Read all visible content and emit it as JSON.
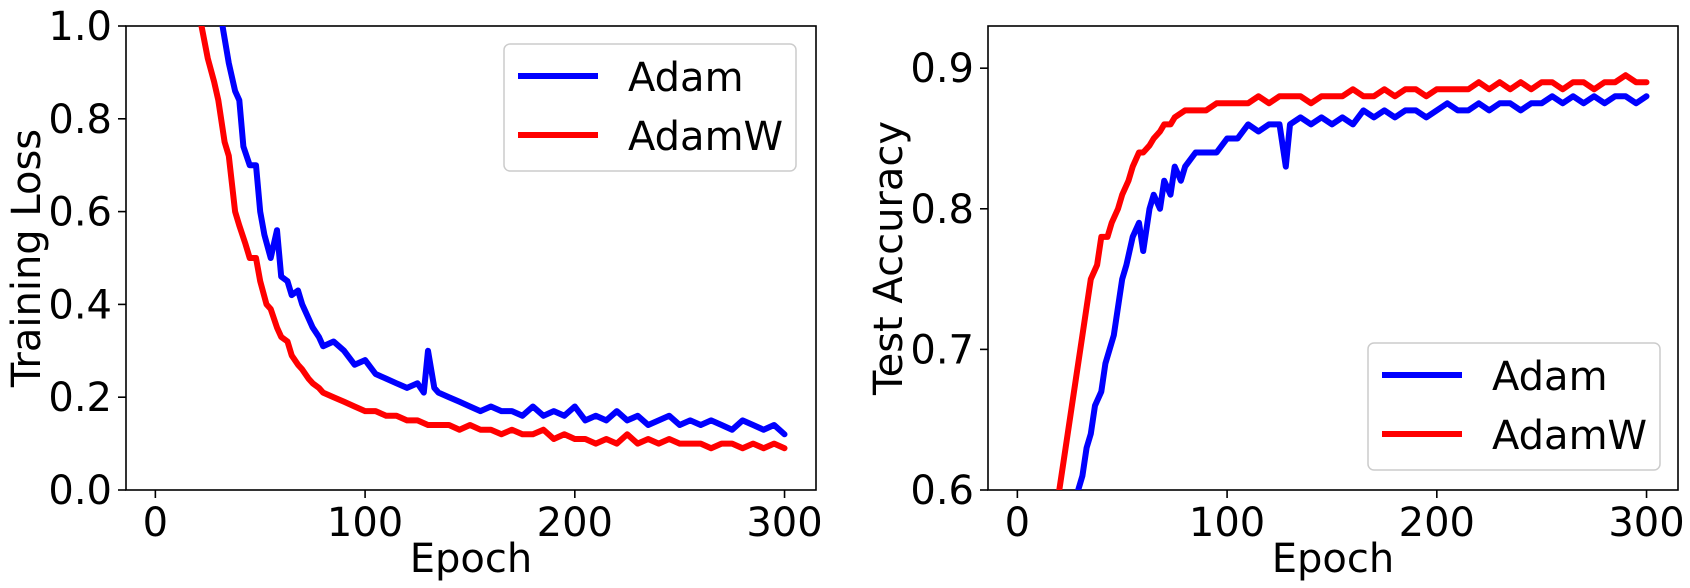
{
  "chart_data": [
    {
      "type": "line",
      "title": "",
      "xlabel": "Epoch",
      "ylabel": "Training Loss",
      "xlim": [
        -14,
        315
      ],
      "ylim": [
        0.0,
        1.0
      ],
      "xticks": [
        0,
        100,
        200,
        300
      ],
      "xtick_labels": [
        "0",
        "100",
        "200",
        "300"
      ],
      "yticks": [
        0.0,
        0.2,
        0.4,
        0.6,
        0.8,
        1.0
      ],
      "ytick_labels": [
        "0.0",
        "0.2",
        "0.4",
        "0.6",
        "0.8",
        "1.0"
      ],
      "legend_position": "top-right",
      "grid": false,
      "series": [
        {
          "name": "Adam",
          "color": "#0000ff",
          "x": [
            32,
            35,
            38,
            40,
            42,
            45,
            48,
            50,
            52,
            55,
            58,
            60,
            63,
            65,
            68,
            70,
            73,
            75,
            78,
            80,
            85,
            90,
            95,
            100,
            105,
            110,
            115,
            120,
            125,
            128,
            130,
            133,
            135,
            140,
            145,
            150,
            155,
            160,
            165,
            170,
            175,
            180,
            185,
            190,
            195,
            200,
            205,
            210,
            215,
            220,
            225,
            230,
            235,
            240,
            245,
            250,
            255,
            260,
            265,
            270,
            275,
            280,
            285,
            290,
            295,
            300
          ],
          "y": [
            1.0,
            0.92,
            0.86,
            0.84,
            0.74,
            0.7,
            0.7,
            0.6,
            0.55,
            0.5,
            0.56,
            0.46,
            0.45,
            0.42,
            0.43,
            0.4,
            0.37,
            0.35,
            0.33,
            0.31,
            0.32,
            0.3,
            0.27,
            0.28,
            0.25,
            0.24,
            0.23,
            0.22,
            0.23,
            0.21,
            0.3,
            0.22,
            0.21,
            0.2,
            0.19,
            0.18,
            0.17,
            0.18,
            0.17,
            0.17,
            0.16,
            0.18,
            0.16,
            0.17,
            0.16,
            0.18,
            0.15,
            0.16,
            0.15,
            0.17,
            0.15,
            0.16,
            0.14,
            0.15,
            0.16,
            0.14,
            0.15,
            0.14,
            0.15,
            0.14,
            0.13,
            0.15,
            0.14,
            0.13,
            0.14,
            0.12
          ]
        },
        {
          "name": "AdamW",
          "color": "#ff0000",
          "x": [
            22,
            25,
            28,
            30,
            33,
            35,
            38,
            40,
            43,
            45,
            48,
            50,
            53,
            55,
            58,
            60,
            63,
            65,
            68,
            70,
            73,
            75,
            78,
            80,
            85,
            90,
            95,
            100,
            105,
            110,
            115,
            120,
            125,
            130,
            135,
            140,
            145,
            150,
            155,
            160,
            165,
            170,
            175,
            180,
            185,
            190,
            195,
            200,
            205,
            210,
            215,
            220,
            225,
            230,
            235,
            240,
            245,
            250,
            255,
            260,
            265,
            270,
            275,
            280,
            285,
            290,
            295,
            300
          ],
          "y": [
            1.0,
            0.93,
            0.88,
            0.84,
            0.75,
            0.72,
            0.6,
            0.57,
            0.53,
            0.5,
            0.5,
            0.45,
            0.4,
            0.39,
            0.35,
            0.33,
            0.32,
            0.29,
            0.27,
            0.26,
            0.24,
            0.23,
            0.22,
            0.21,
            0.2,
            0.19,
            0.18,
            0.17,
            0.17,
            0.16,
            0.16,
            0.15,
            0.15,
            0.14,
            0.14,
            0.14,
            0.13,
            0.14,
            0.13,
            0.13,
            0.12,
            0.13,
            0.12,
            0.12,
            0.13,
            0.11,
            0.12,
            0.11,
            0.11,
            0.1,
            0.11,
            0.1,
            0.12,
            0.1,
            0.11,
            0.1,
            0.11,
            0.1,
            0.1,
            0.1,
            0.09,
            0.1,
            0.1,
            0.09,
            0.1,
            0.09,
            0.1,
            0.09
          ]
        }
      ]
    },
    {
      "type": "line",
      "title": "",
      "xlabel": "Epoch",
      "ylabel": "Test Accuracy",
      "xlim": [
        -14,
        315
      ],
      "ylim": [
        0.6,
        0.93
      ],
      "xticks": [
        0,
        100,
        200,
        300
      ],
      "xtick_labels": [
        "0",
        "100",
        "200",
        "300"
      ],
      "yticks": [
        0.6,
        0.7,
        0.8,
        0.9
      ],
      "ytick_labels": [
        "0.6",
        "0.7",
        "0.8",
        "0.9"
      ],
      "legend_position": "bottom-right",
      "grid": false,
      "series": [
        {
          "name": "Adam",
          "color": "#0000ff",
          "x": [
            29,
            31,
            33,
            35,
            37,
            40,
            42,
            44,
            46,
            48,
            50,
            52,
            55,
            58,
            60,
            63,
            65,
            68,
            70,
            73,
            75,
            78,
            80,
            85,
            90,
            95,
            100,
            105,
            110,
            115,
            120,
            125,
            128,
            130,
            135,
            140,
            145,
            150,
            155,
            160,
            165,
            170,
            175,
            180,
            185,
            190,
            195,
            200,
            205,
            210,
            215,
            220,
            225,
            230,
            235,
            240,
            245,
            250,
            255,
            260,
            265,
            270,
            275,
            280,
            285,
            290,
            295,
            300
          ],
          "y": [
            0.6,
            0.61,
            0.63,
            0.64,
            0.66,
            0.67,
            0.69,
            0.7,
            0.71,
            0.73,
            0.75,
            0.76,
            0.78,
            0.79,
            0.77,
            0.8,
            0.81,
            0.8,
            0.82,
            0.81,
            0.83,
            0.82,
            0.83,
            0.84,
            0.84,
            0.84,
            0.85,
            0.85,
            0.86,
            0.855,
            0.86,
            0.86,
            0.83,
            0.86,
            0.865,
            0.86,
            0.865,
            0.86,
            0.865,
            0.86,
            0.87,
            0.865,
            0.87,
            0.865,
            0.87,
            0.87,
            0.865,
            0.87,
            0.875,
            0.87,
            0.87,
            0.875,
            0.87,
            0.875,
            0.875,
            0.87,
            0.875,
            0.875,
            0.88,
            0.875,
            0.88,
            0.875,
            0.88,
            0.875,
            0.88,
            0.88,
            0.875,
            0.88
          ]
        },
        {
          "name": "AdamW",
          "color": "#ff0000",
          "x": [
            20,
            22,
            24,
            26,
            28,
            30,
            33,
            35,
            38,
            40,
            43,
            45,
            48,
            50,
            53,
            55,
            58,
            60,
            63,
            65,
            68,
            70,
            73,
            75,
            80,
            85,
            90,
            95,
            100,
            105,
            110,
            115,
            120,
            125,
            130,
            135,
            140,
            145,
            150,
            155,
            160,
            165,
            170,
            175,
            180,
            185,
            190,
            195,
            200,
            205,
            210,
            215,
            220,
            225,
            230,
            235,
            240,
            245,
            250,
            255,
            260,
            265,
            270,
            275,
            280,
            285,
            290,
            295,
            300
          ],
          "y": [
            0.6,
            0.62,
            0.64,
            0.66,
            0.68,
            0.7,
            0.73,
            0.75,
            0.76,
            0.78,
            0.78,
            0.79,
            0.8,
            0.81,
            0.82,
            0.83,
            0.84,
            0.84,
            0.845,
            0.85,
            0.855,
            0.86,
            0.86,
            0.865,
            0.87,
            0.87,
            0.87,
            0.875,
            0.875,
            0.875,
            0.875,
            0.88,
            0.875,
            0.88,
            0.88,
            0.88,
            0.875,
            0.88,
            0.88,
            0.88,
            0.885,
            0.88,
            0.88,
            0.885,
            0.88,
            0.885,
            0.885,
            0.88,
            0.885,
            0.885,
            0.885,
            0.885,
            0.89,
            0.885,
            0.89,
            0.885,
            0.89,
            0.885,
            0.89,
            0.89,
            0.885,
            0.89,
            0.89,
            0.885,
            0.89,
            0.89,
            0.895,
            0.89,
            0.89
          ]
        }
      ]
    }
  ]
}
